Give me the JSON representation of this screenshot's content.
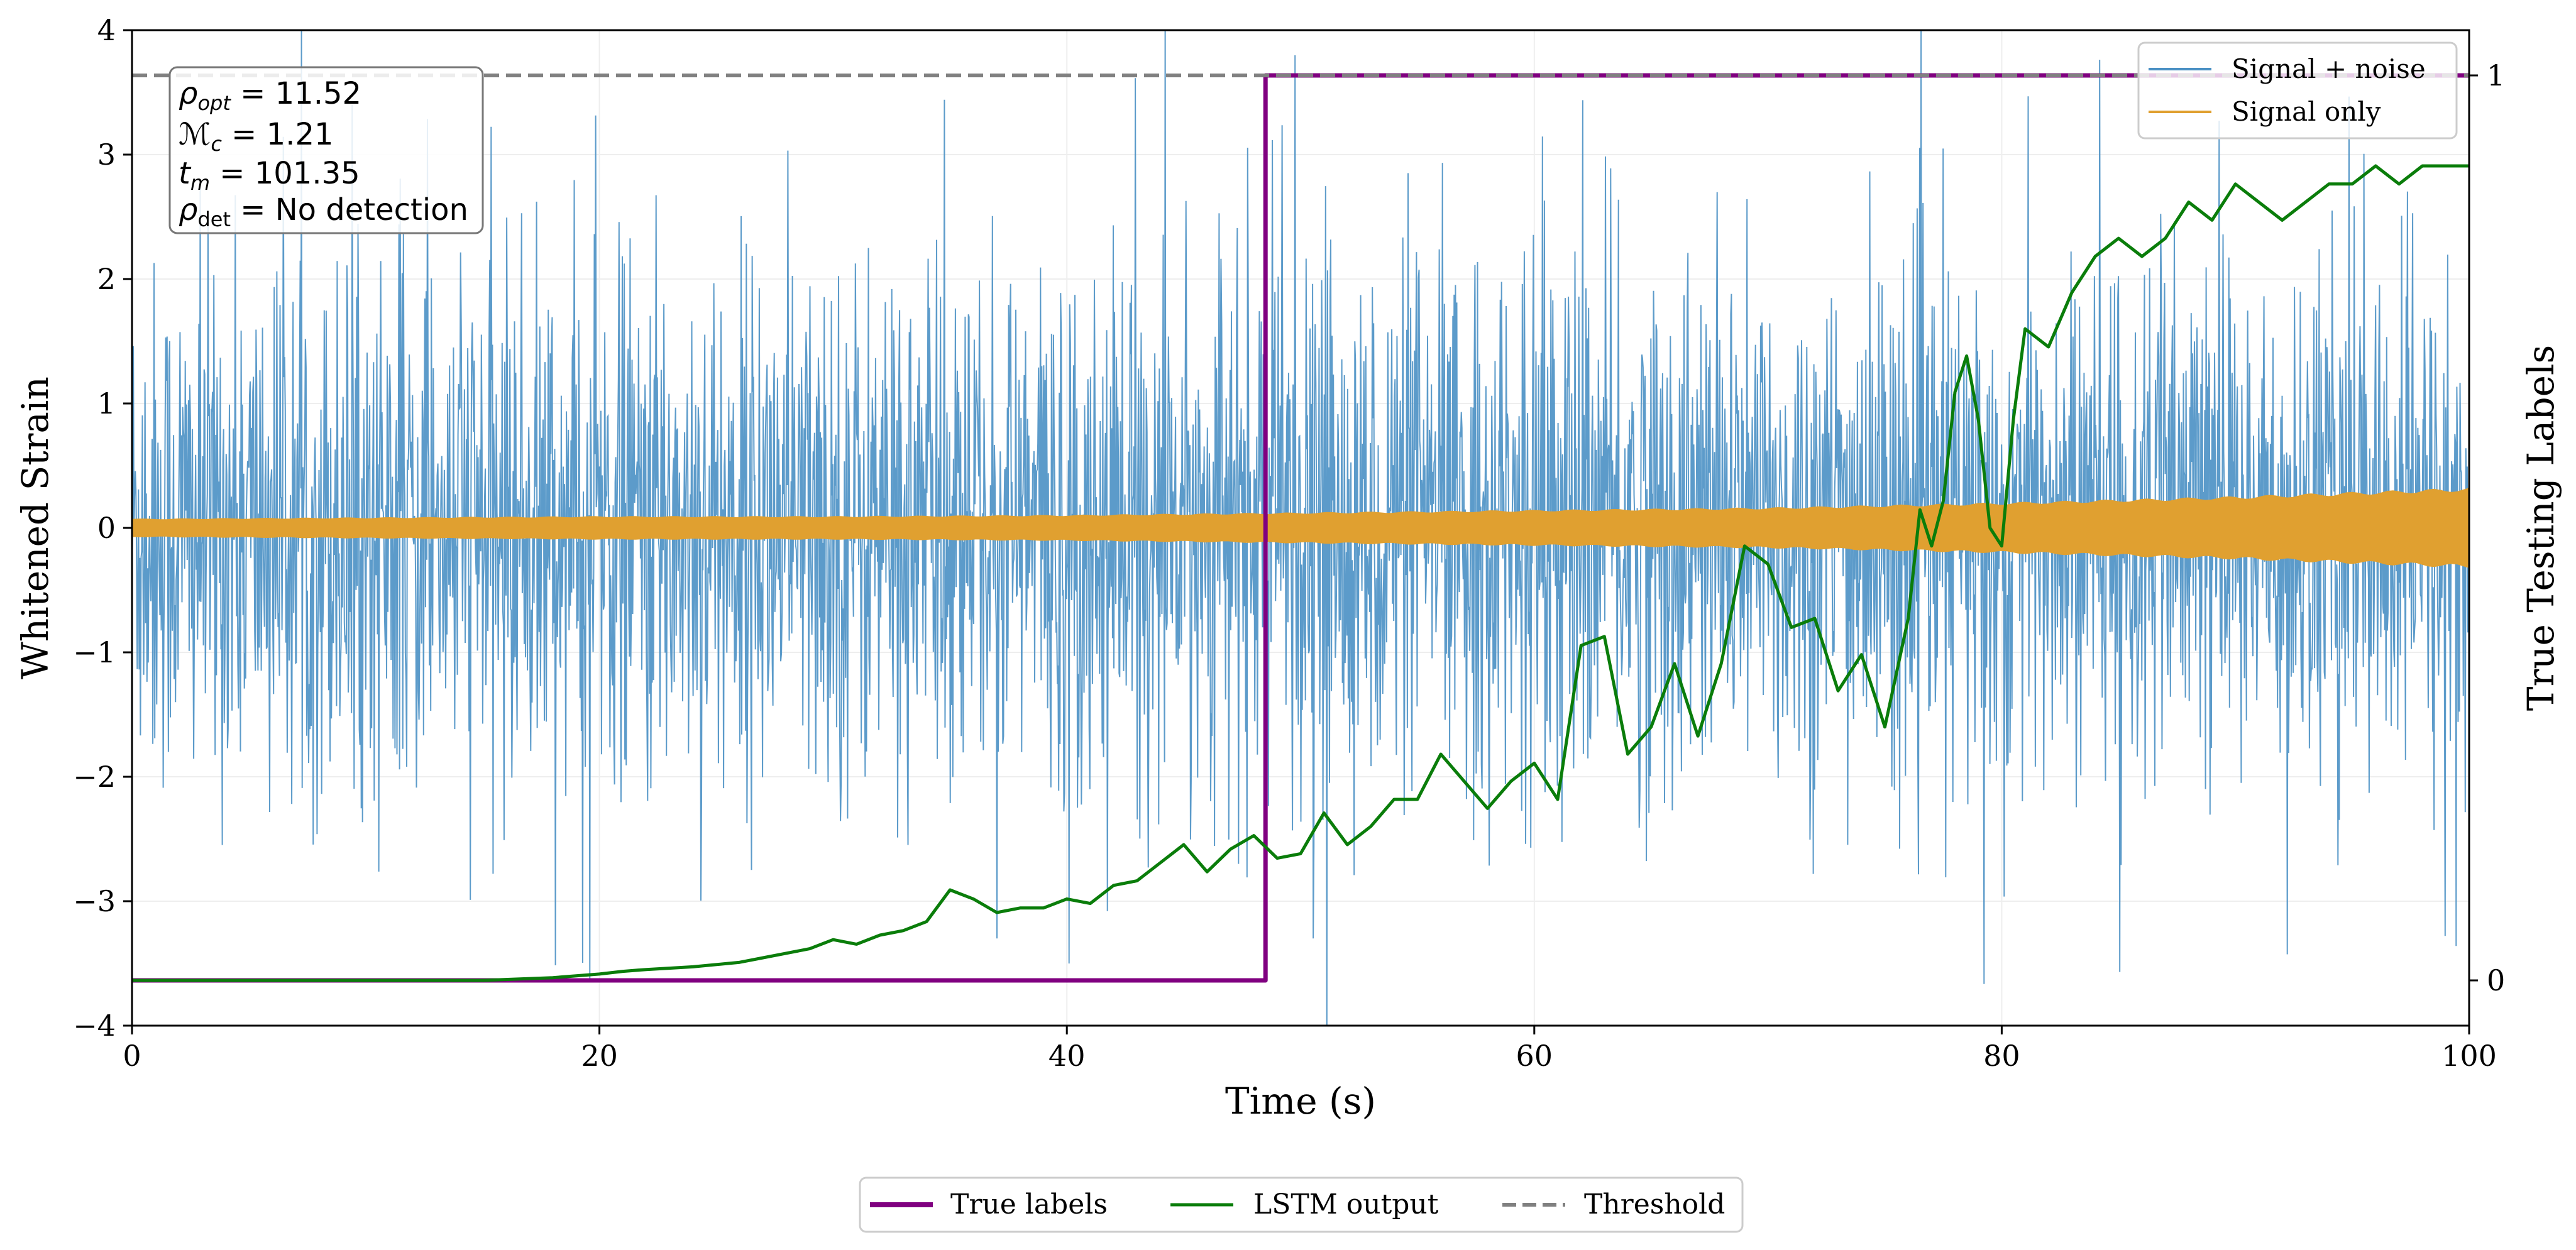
{
  "chart_data": {
    "type": "line",
    "xlabel": "Time (s)",
    "ylabel_left": "Whitened Strain",
    "ylabel_right": "True Testing Labels",
    "xlim": [
      0,
      100
    ],
    "ylim_left": [
      -4,
      4
    ],
    "ylim_right": [
      -0.05,
      1.05
    ],
    "x_ticks": [
      0,
      20,
      40,
      60,
      80,
      100
    ],
    "x_tick_labels": [
      "0",
      "20",
      "40",
      "60",
      "80",
      "100"
    ],
    "y_ticks_left": [
      -4,
      -3,
      -2,
      -1,
      0,
      1,
      2,
      3,
      4
    ],
    "y_tick_labels_left": [
      "−4",
      "−3",
      "−2",
      "−1",
      "0",
      "1",
      "2",
      "3",
      "4"
    ],
    "y_ticks_right": [
      0,
      1
    ],
    "y_tick_labels_right": [
      "0",
      "1"
    ],
    "grid": true,
    "info_box": {
      "rho_opt": {
        "symbol": "ρ",
        "sub": "opt",
        "value": "11.52"
      },
      "mc": {
        "symbol": "ℳ",
        "sub": "c",
        "value": "1.21"
      },
      "tm": {
        "symbol": "t",
        "sub": "m",
        "value": "101.35"
      },
      "rho_det": {
        "symbol": "ρ",
        "sub": "det",
        "value": "No detection"
      }
    },
    "series": [
      {
        "name": "Signal + noise",
        "axis": "left",
        "color": "#4a90c4",
        "style": "noise",
        "description_envelope": {
          "typical_amplitude": 1.0,
          "peaks": [
            4,
            -3.8
          ]
        }
      },
      {
        "name": "Signal only",
        "axis": "left",
        "color": "#e0a030",
        "style": "band",
        "envelope_x": [
          0,
          10,
          20,
          30,
          40,
          50,
          60,
          70,
          80,
          90,
          100
        ],
        "envelope_amplitude": [
          0.07,
          0.08,
          0.09,
          0.09,
          0.1,
          0.12,
          0.14,
          0.16,
          0.2,
          0.25,
          0.32
        ]
      },
      {
        "name": "True labels",
        "axis": "right",
        "color": "#800080",
        "style": "step",
        "x": [
          0,
          48.5,
          48.5,
          100
        ],
        "y": [
          0,
          0,
          1,
          1
        ]
      },
      {
        "name": "LSTM output",
        "axis": "right",
        "color": "#0a7d0a",
        "style": "line",
        "x": [
          0,
          15,
          18,
          20,
          21,
          22,
          24,
          26,
          27,
          28,
          29,
          30,
          31,
          32,
          33,
          34,
          35,
          36,
          37,
          38,
          39,
          40,
          41,
          42,
          43,
          44,
          45,
          46,
          47,
          48,
          49,
          50,
          51,
          52,
          53,
          54,
          55,
          56,
          57,
          58,
          59,
          60,
          61,
          62,
          63,
          64,
          65,
          66,
          67,
          68,
          69,
          70,
          71,
          72,
          73,
          74,
          75,
          76,
          76.5,
          77,
          77.5,
          78,
          78.5,
          79,
          79.5,
          80,
          80.5,
          81,
          82,
          83,
          84,
          85,
          86,
          87,
          88,
          89,
          90,
          91,
          92,
          93,
          94,
          95,
          96,
          97,
          98,
          99,
          100
        ],
        "y": [
          0,
          0,
          0.003,
          0.007,
          0.01,
          0.012,
          0.015,
          0.02,
          0.025,
          0.03,
          0.035,
          0.045,
          0.04,
          0.05,
          0.055,
          0.065,
          0.1,
          0.09,
          0.075,
          0.08,
          0.08,
          0.09,
          0.085,
          0.105,
          0.11,
          0.13,
          0.15,
          0.12,
          0.145,
          0.16,
          0.135,
          0.14,
          0.185,
          0.15,
          0.17,
          0.2,
          0.2,
          0.25,
          0.22,
          0.19,
          0.22,
          0.24,
          0.2,
          0.37,
          0.38,
          0.25,
          0.28,
          0.35,
          0.27,
          0.35,
          0.48,
          0.46,
          0.39,
          0.4,
          0.32,
          0.36,
          0.28,
          0.4,
          0.52,
          0.48,
          0.53,
          0.65,
          0.69,
          0.62,
          0.5,
          0.48,
          0.62,
          0.72,
          0.7,
          0.76,
          0.8,
          0.82,
          0.8,
          0.82,
          0.86,
          0.84,
          0.88,
          0.86,
          0.84,
          0.86,
          0.88,
          0.88,
          0.9,
          0.88,
          0.9,
          0.9,
          0.9
        ]
      },
      {
        "name": "Threshold",
        "axis": "right",
        "color": "#808080",
        "style": "dashed",
        "y": 1
      }
    ],
    "top_legend": [
      "Signal + noise",
      "Signal only"
    ],
    "bottom_legend": [
      "True labels",
      "LSTM output",
      "Threshold"
    ]
  }
}
